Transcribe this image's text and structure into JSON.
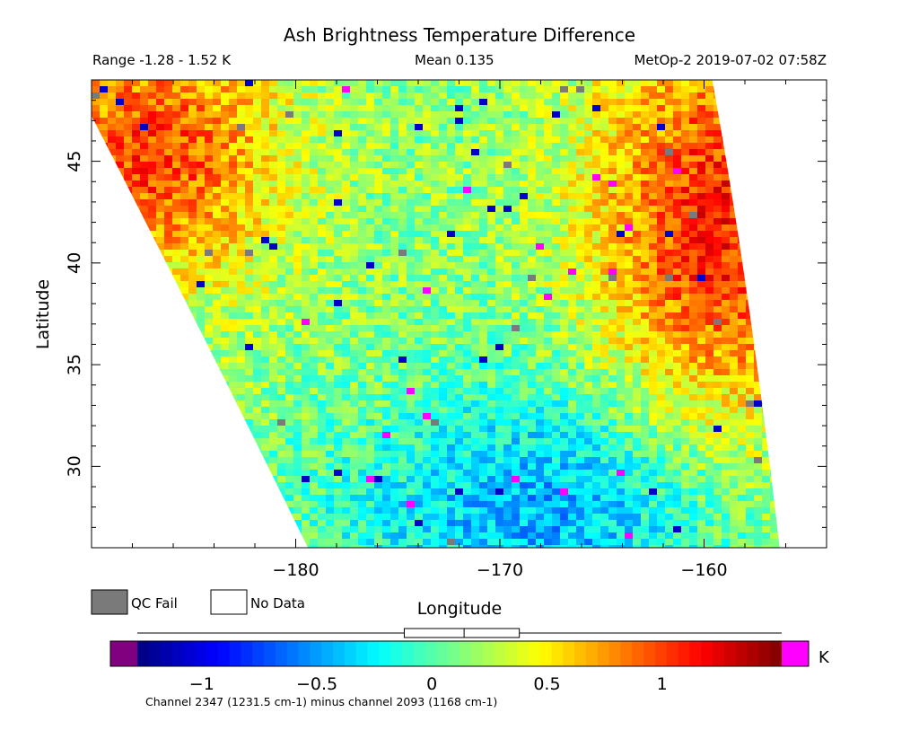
{
  "header": {
    "title": "Ash Brightness Temperature Difference",
    "range": "Range -1.28 - 1.52 K",
    "mean": "Mean 0.135",
    "satellite_time": "MetOp-2 2019-07-02 07:58Z"
  },
  "legend": {
    "qc_fail": "QC Fail",
    "no_data": "No Data",
    "qc_fail_color": "#7a7a7a",
    "no_data_color": "#ffffff"
  },
  "colorbar": {
    "unit": "K",
    "footer": "Channel 2347 (1231.5 cm-1) minus channel 2093 (1168 cm-1)",
    "tick_labels": [
      "-1",
      "-0.5",
      "0",
      "0.5",
      "1"
    ],
    "under_color": "#800080",
    "over_color": "#ff00ff"
  },
  "chart_data": {
    "type": "heatmap",
    "title": "Ash Brightness Temperature Difference",
    "xlabel": "Longitude",
    "ylabel": "Latitude",
    "xlim": [
      -190,
      -154
    ],
    "ylim": [
      26,
      49
    ],
    "x_ticks": [
      -180,
      -170,
      -160
    ],
    "x_tick_labels": [
      "−180",
      "−170",
      "−160"
    ],
    "y_ticks": [
      30,
      35,
      40,
      45
    ],
    "y_tick_labels": [
      "30",
      "35",
      "40",
      "45"
    ],
    "color_range": [
      -1.28,
      1.52
    ],
    "units": "K",
    "colormap": "jet",
    "swath_corners": {
      "top_left": [
        -190,
        49
      ],
      "top_right": [
        -159.6,
        49
      ],
      "bottom_right": [
        -156.3,
        26
      ],
      "bottom_left": [
        -179.4,
        26
      ]
    },
    "field_description_values": {
      "north_west": 1.0,
      "north_east": 1.1,
      "center": 0.15,
      "south_center": -0.45,
      "south_west": 0.05
    },
    "box_plot": {
      "whisker_min": -1.28,
      "q1": -0.12,
      "median": 0.14,
      "q3": 0.38,
      "whisker_max": 1.52
    }
  }
}
